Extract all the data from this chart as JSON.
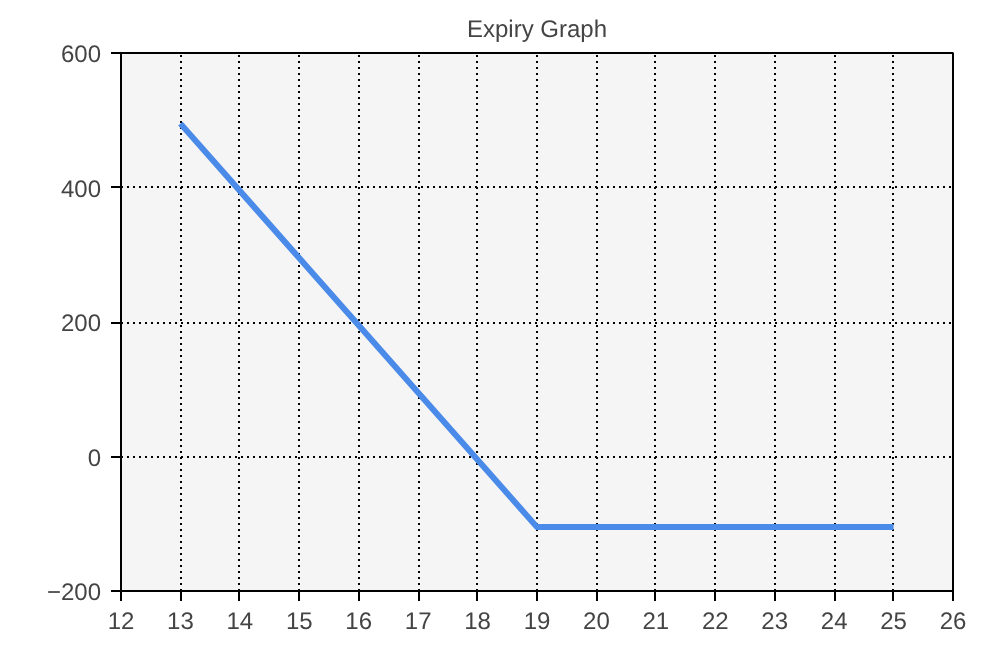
{
  "chart_data": {
    "type": "line",
    "title": "Expiry Graph",
    "x": [
      13,
      19,
      25
    ],
    "series": [
      {
        "color": "#4a8ae8",
        "values": [
          495,
          -105,
          -105
        ]
      }
    ],
    "xlim": [
      12,
      26
    ],
    "xticks": [
      12,
      13,
      14,
      15,
      16,
      17,
      18,
      19,
      20,
      21,
      22,
      23,
      24,
      25,
      26
    ],
    "ylim": [
      -200,
      600
    ],
    "yticks": [
      -200,
      0,
      200,
      400,
      600
    ],
    "grid": true,
    "line_style": "solid",
    "marker": "none"
  }
}
